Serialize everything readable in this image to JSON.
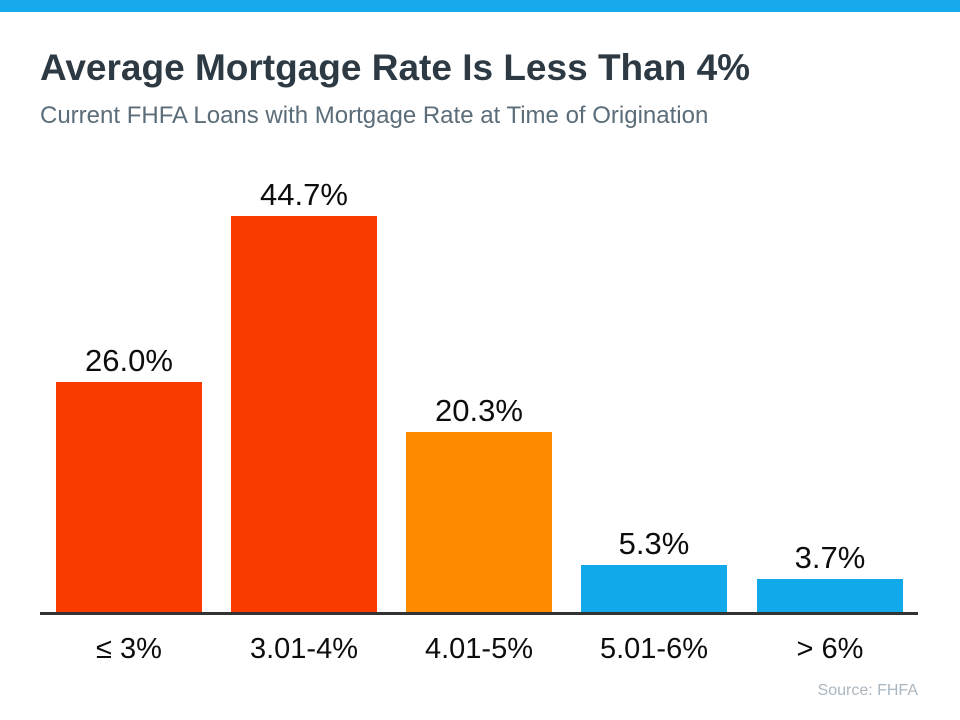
{
  "chart_data": {
    "type": "bar",
    "title": "Average Mortgage Rate Is Less Than 4%",
    "subtitle": "Current FHFA Loans with Mortgage Rate at Time of Origination",
    "categories": [
      "≤ 3%",
      "3.01-4%",
      "4.01-5%",
      "5.01-6%",
      "> 6%"
    ],
    "values": [
      26.0,
      44.7,
      20.3,
      5.3,
      3.7
    ],
    "value_labels": [
      "26.0%",
      "44.7%",
      "20.3%",
      "5.3%",
      "3.7%"
    ],
    "bar_colors": [
      "#fb3a00",
      "#fb3a00",
      "#fe8a00",
      "#12a9eb",
      "#12a9eb"
    ],
    "ylim": [
      0,
      48
    ],
    "xlabel": "",
    "ylabel": "",
    "grid": false,
    "legend": null,
    "source": "Source: FHFA"
  },
  "theme": {
    "accent_strip_color": "#16aaec",
    "title_color": "#2d3a44",
    "subtitle_color": "#5b6d79",
    "axis_line_color": "#333333",
    "label_color": "#0d0d0d",
    "source_color": "#aab6bf"
  }
}
